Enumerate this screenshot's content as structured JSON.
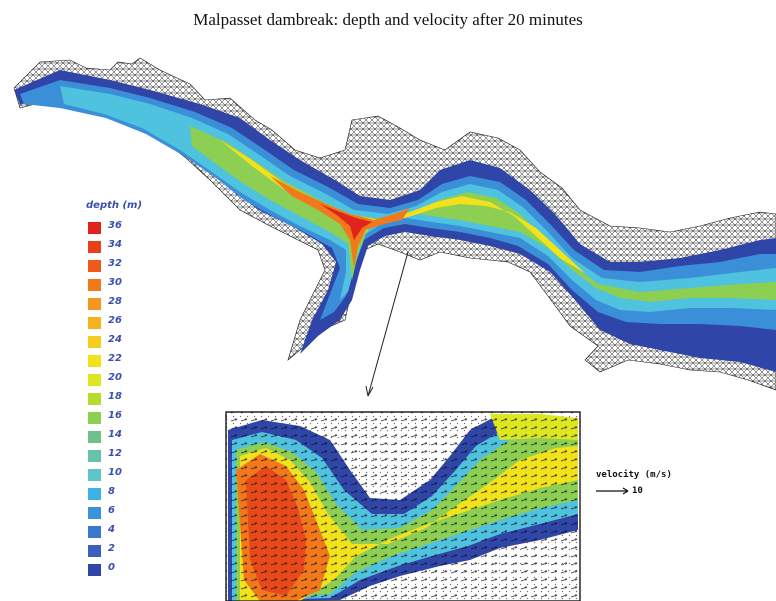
{
  "title": "Malpasset dambreak: depth and velocity after 20 minutes",
  "legend": {
    "title": "depth (m)",
    "ticks": [
      "36",
      "34",
      "32",
      "30",
      "28",
      "26",
      "24",
      "22",
      "20",
      "18",
      "16",
      "14",
      "12",
      "10",
      "8",
      "6",
      "4",
      "2",
      "0"
    ],
    "colors": [
      "#e0231c",
      "#e8411a",
      "#ee5a1a",
      "#f2781c",
      "#f5961e",
      "#f6b21f",
      "#f4cd1f",
      "#f2e21c",
      "#dde61e",
      "#b6dc30",
      "#8ccf52",
      "#6fc08a",
      "#66c2a8",
      "#5ec4c8",
      "#3cb2e4",
      "#3a93d8",
      "#3a78cc",
      "#3a5fbe",
      "#2f45a8"
    ]
  },
  "velocity_legend": {
    "label": "velocity (m/s)",
    "value": "10"
  },
  "colors": {
    "deep_blue": "#2f45a8",
    "mid_blue": "#3a8fd8",
    "cyan": "#4fc2e0",
    "green": "#8ccf52",
    "yellow": "#f2e21c",
    "orange": "#f2781c",
    "red": "#e0231c"
  }
}
